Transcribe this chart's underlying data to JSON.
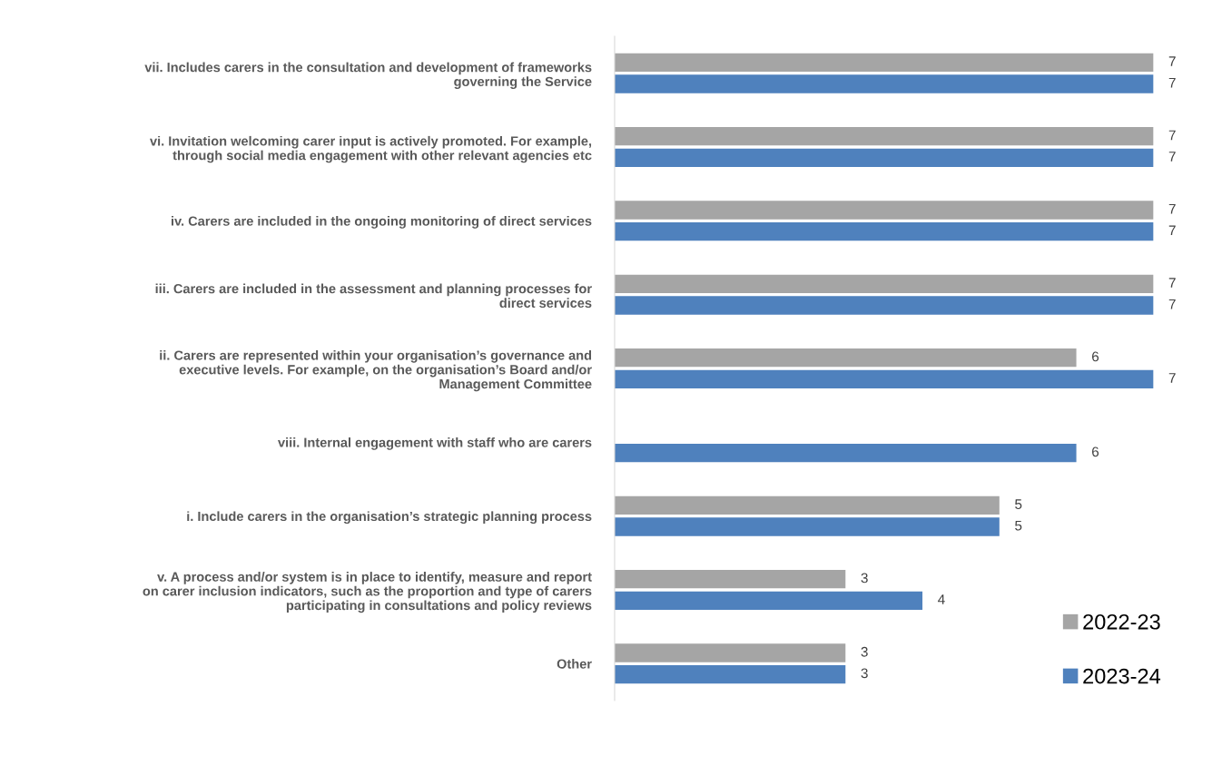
{
  "chart_data": {
    "type": "bar",
    "orientation": "horizontal",
    "categories": [
      "vii. Includes carers in the consultation and development of frameworks\ngoverning the Service",
      "vi. Invitation welcoming carer input is actively promoted. For example,\nthrough social media engagement with other relevant agencies etc",
      "iv. Carers are included in the ongoing monitoring of direct services",
      "iii. Carers are included in the assessment and planning processes for\ndirect services",
      "ii. Carers are represented within your organisation’s governance and\nexecutive levels. For example, on the organisation’s Board and/or\nManagement Committee",
      "viii. Internal engagement with staff who are carers",
      "i. Include carers in the organisation’s strategic planning process",
      "v. A process and/or system is in place to identify, measure and report\non carer inclusion indicators, such as the proportion and type of carers\nparticipating in consultations and policy reviews",
      "Other"
    ],
    "series": [
      {
        "name": "2022-23",
        "color": "#a5a5a5",
        "values": [
          7,
          7,
          7,
          7,
          6,
          null,
          5,
          3,
          3
        ]
      },
      {
        "name": "2023-24",
        "color": "#4f81bd",
        "values": [
          7,
          7,
          7,
          7,
          7,
          6,
          5,
          4,
          3
        ]
      }
    ],
    "data_labels": true,
    "tick_labels": "y",
    "grid": false,
    "legend": "bottom right"
  }
}
